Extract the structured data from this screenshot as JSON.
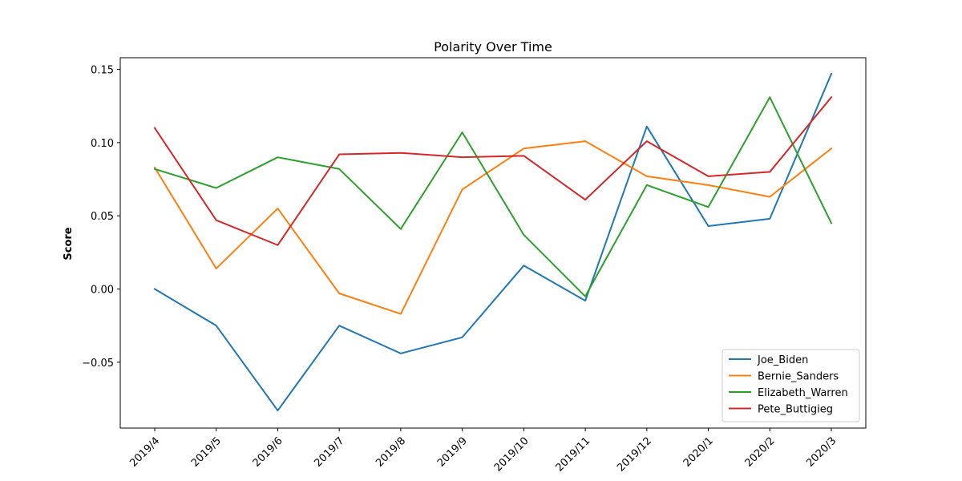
{
  "chart_data": {
    "type": "line",
    "title": "Polarity Over Time",
    "xlabel": "",
    "ylabel": "Score",
    "categories": [
      "2019/4",
      "2019/5",
      "2019/6",
      "2019/7",
      "2019/8",
      "2019/9",
      "2019/10",
      "2019/11",
      "2019/12",
      "2020/1",
      "2020/2",
      "2020/3"
    ],
    "ylim": [
      -0.095,
      0.158
    ],
    "yticks": [
      -0.05,
      0.0,
      0.05,
      0.1,
      0.15
    ],
    "ytick_labels": [
      "−0.05",
      "0.00",
      "0.05",
      "0.10",
      "0.15"
    ],
    "grid": false,
    "legend_position": "lower-right",
    "series": [
      {
        "name": "Joe_Biden",
        "color": "#1f77b4",
        "values": [
          0.0,
          -0.025,
          -0.083,
          -0.025,
          -0.044,
          -0.033,
          0.016,
          -0.008,
          0.111,
          0.043,
          0.048,
          0.147
        ]
      },
      {
        "name": "Bernie_Sanders",
        "color": "#ff7f0e",
        "values": [
          0.083,
          0.014,
          0.055,
          -0.003,
          -0.017,
          0.068,
          0.096,
          0.101,
          0.077,
          0.071,
          0.063,
          0.096
        ]
      },
      {
        "name": "Elizabeth_Warren",
        "color": "#2ca02c",
        "values": [
          0.082,
          0.069,
          0.09,
          0.082,
          0.041,
          0.107,
          0.037,
          -0.005,
          0.071,
          0.056,
          0.131,
          0.045
        ]
      },
      {
        "name": "Pete_Buttigieg",
        "color": "#d62728",
        "values": [
          0.11,
          0.047,
          0.03,
          0.092,
          0.093,
          0.09,
          0.091,
          0.061,
          0.101,
          0.077,
          0.08,
          0.131
        ]
      }
    ]
  }
}
